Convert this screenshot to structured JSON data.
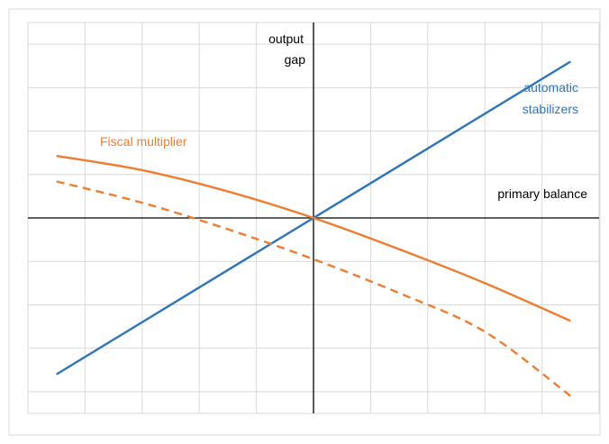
{
  "chart_data": {
    "type": "line",
    "title": "",
    "xlabel": "primary balance",
    "ylabel_lines": [
      "output",
      "gap"
    ],
    "xlim": [
      -5,
      5
    ],
    "ylim": [
      -4.5,
      4.5
    ],
    "grid": true,
    "series": [
      {
        "name": "automatic stabilizers",
        "name_lines": [
          "automatic",
          "stabilizers"
        ],
        "color": "#2e75b6",
        "style": "solid",
        "x": [
          -4.5,
          4.5
        ],
        "y": [
          -3.6,
          3.6
        ]
      },
      {
        "name": "Fiscal multiplier",
        "name_lines": [
          "Fiscal multiplier"
        ],
        "color": "#ed7d31",
        "style": "solid",
        "x": [
          -4.5,
          -3,
          -1.5,
          0,
          1.5,
          3,
          4.5
        ],
        "y": [
          1.43,
          1.1,
          0.61,
          0,
          -0.72,
          -1.5,
          -2.37
        ]
      },
      {
        "name": "",
        "color": "#ed7d31",
        "style": "dashed",
        "x": [
          -4.5,
          -3,
          -1.5,
          0,
          1.5,
          3,
          4.5
        ],
        "y": [
          0.84,
          0.35,
          -0.26,
          -0.95,
          -1.73,
          -2.62,
          -4.1
        ]
      }
    ]
  }
}
